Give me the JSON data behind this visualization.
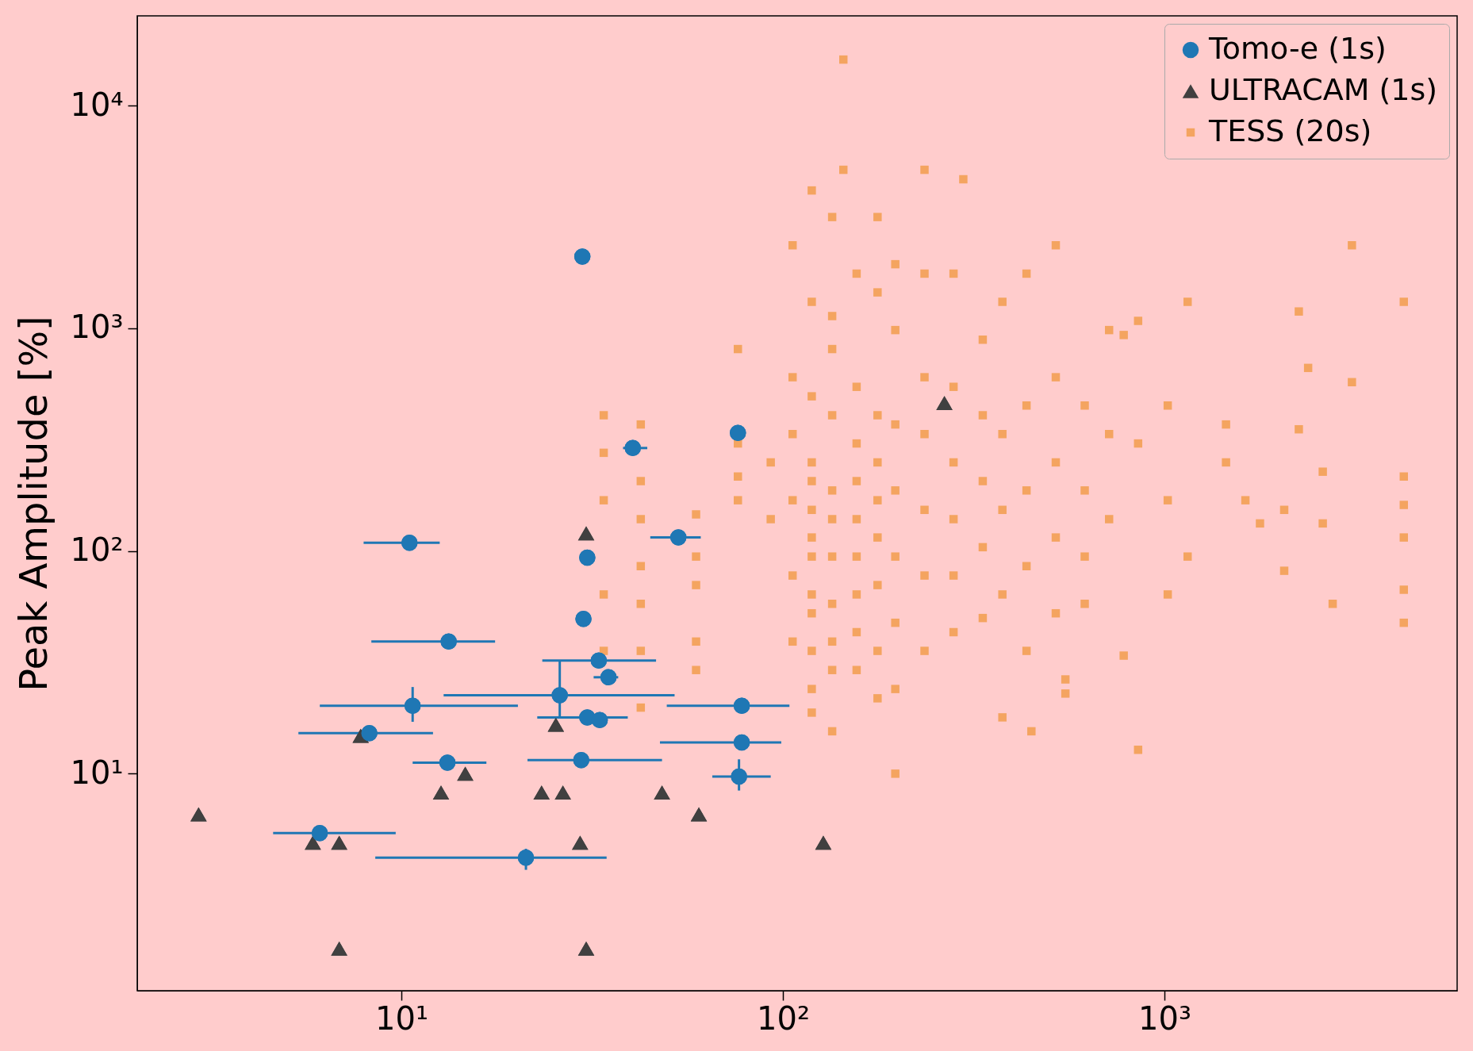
{
  "chart_data": {
    "type": "scatter",
    "ylabel": "Peak Amplitude [%]",
    "log": "xy",
    "grid": false,
    "legend": "top right",
    "xlim": [
      2.03,
      5850
    ],
    "ylim": [
      1.06,
      25300
    ],
    "xticks": [
      {
        "value": 10,
        "label": "10¹"
      },
      {
        "value": 100,
        "label": "10²"
      },
      {
        "value": 1000,
        "label": "10³"
      }
    ],
    "yticks": [
      {
        "value": 10,
        "label": "10¹"
      },
      {
        "value": 100,
        "label": "10²"
      },
      {
        "value": 1000,
        "label": "10³"
      },
      {
        "value": 10000,
        "label": "10⁴"
      }
    ],
    "series": [
      {
        "name": "Tomo-e (1s)",
        "color": "#1f77b4",
        "marker": "circle",
        "x": [
          29.8,
          10.5,
          30.7,
          30.0,
          40.4,
          76.2,
          53.2,
          13.3,
          32.9,
          34.9,
          26.0,
          10.7,
          30.7,
          33.1,
          8.24,
          78.0,
          78.0,
          13.2,
          29.6,
          76.7,
          6.11,
          21.2
        ],
        "values": [
          2100,
          109,
          93.3,
          49.5,
          290,
          339,
          115,
          39.2,
          32.2,
          27.1,
          22.5,
          20.2,
          17.9,
          17.4,
          15.2,
          20.2,
          13.8,
          11.2,
          11.5,
          9.7,
          5.41,
          4.2
        ],
        "xerrors": [
          null,
          [
            7.96,
            12.6
          ],
          null,
          null,
          [
            38.1,
            44.1
          ],
          null,
          [
            44.9,
            60.9
          ],
          [
            8.34,
            17.6
          ],
          [
            23.4,
            46.5
          ],
          [
            31.9,
            37.0
          ],
          [
            12.9,
            52.0
          ],
          [
            6.11,
            20.2
          ],
          [
            22.7,
            39.2
          ],
          null,
          [
            5.37,
            12.1
          ],
          [
            49.6,
            104
          ],
          [
            47.6,
            99
          ],
          [
            10.7,
            16.7
          ],
          [
            21.4,
            48.2
          ],
          [
            65.3,
            92.9
          ],
          [
            4.61,
            9.66
          ],
          [
            8.54,
            34.5
          ]
        ],
        "errors": [
          null,
          null,
          null,
          null,
          null,
          null,
          null,
          null,
          null,
          null,
          [
            18,
            32
          ],
          [
            17.1,
            24.5
          ],
          null,
          null,
          null,
          null,
          null,
          null,
          null,
          [
            8.4,
            11.6
          ],
          null,
          [
            3.7,
            4.6
          ]
        ]
      },
      {
        "name": "ULTRACAM (1s)",
        "color": "#404040",
        "marker": "triangle",
        "x": [
          2.94,
          5.86,
          6.87,
          7.82,
          12.7,
          14.7,
          23.3,
          26.5,
          25.4,
          30.5,
          29.4,
          48.2,
          60.2,
          127.6,
          265,
          6.87,
          30.5
        ],
        "values": [
          6.57,
          4.9,
          4.9,
          14.8,
          8.23,
          10,
          8.23,
          8.23,
          16.6,
          120,
          4.9,
          8.23,
          6.57,
          4.9,
          462,
          1.64,
          1.64
        ]
      },
      {
        "name": "TESS (20s)",
        "color": "#f4a460",
        "marker": "square",
        "x": [
          33.9,
          33.9,
          33.9,
          33.9,
          33.9,
          42.4,
          42.4,
          42.4,
          42.4,
          42.4,
          42.4,
          42.4,
          59.2,
          59.2,
          59.2,
          59.2,
          59.2,
          76.2,
          76.2,
          76.2,
          76.2,
          92.9,
          92.9,
          106,
          106,
          106,
          106,
          106,
          106,
          119,
          119,
          119,
          119,
          119,
          119,
          119,
          119,
          119,
          119,
          119,
          119,
          119,
          134.6,
          134.6,
          134.6,
          134.6,
          134.6,
          134.6,
          134.6,
          134.6,
          134.6,
          134.6,
          134.6,
          144,
          144,
          156,
          156,
          156,
          156,
          156,
          156,
          156,
          156,
          156,
          177,
          177,
          177,
          177,
          177,
          177,
          177,
          177,
          177,
          197,
          197,
          197,
          197,
          197,
          197,
          197,
          197,
          235,
          235,
          235,
          235,
          235,
          235,
          235,
          280,
          280,
          280,
          280,
          280,
          280,
          297,
          334,
          334,
          334,
          334,
          334,
          376,
          376,
          376,
          376,
          376,
          435,
          435,
          435,
          435,
          435,
          448,
          519,
          519,
          519,
          519,
          519,
          618,
          618,
          618,
          618,
          550,
          550,
          716,
          716,
          716,
          782,
          782,
          853,
          853,
          853,
          1020,
          1020,
          1020,
          1150,
          1150,
          1450,
          1450,
          1630,
          1780,
          2060,
          2060,
          2250,
          2250,
          2380,
          2600,
          2600,
          2760,
          3100,
          3100,
          4240,
          4240,
          4240,
          4240,
          4240,
          4240
        ],
        "values": [
          407,
          276,
          169,
          63.8,
          35.6,
          370,
          206,
          139,
          85.5,
          57.9,
          35.6,
          19.8,
          146,
          94.4,
          70.3,
          39.2,
          29.2,
          807,
          304,
          216,
          169,
          250,
          139,
          2360,
          603,
          335,
          169,
          77.6,
          39.2,
          4160,
          1315,
          495,
          250,
          206,
          153,
          115,
          94.4,
          63.8,
          52.5,
          35.6,
          24.0,
          18.8,
          3160,
          1135,
          807,
          407,
          187,
          139,
          94.4,
          57.9,
          39.2,
          29.2,
          15.5,
          16100,
          5150,
          1760,
          546,
          304,
          206,
          139,
          94.4,
          63.8,
          43.2,
          29.2,
          3160,
          1450,
          407,
          250,
          169,
          115,
          70.3,
          35.6,
          21.8,
          1940,
          982,
          370,
          187,
          94.4,
          47.6,
          24.0,
          10,
          5150,
          1760,
          603,
          335,
          153,
          77.6,
          35.6,
          1760,
          546,
          250,
          139,
          77.6,
          43.2,
          4670,
          889,
          407,
          206,
          104,
          50,
          1315,
          335,
          153,
          63.8,
          17.9,
          1760,
          450,
          187,
          85.5,
          35.6,
          15.5,
          2360,
          603,
          250,
          115,
          52.5,
          450,
          187,
          94.4,
          57.9,
          26.5,
          22.9,
          982,
          335,
          139,
          33.9,
          933,
          12.8,
          1080,
          304,
          450,
          169,
          63.8,
          1315,
          94.4,
          370,
          250,
          169,
          133,
          153,
          81.5,
          1190,
          352,
          664,
          227,
          133,
          57.9,
          2360,
          573,
          1315,
          216,
          161,
          115,
          67,
          47.6
        ]
      }
    ]
  }
}
